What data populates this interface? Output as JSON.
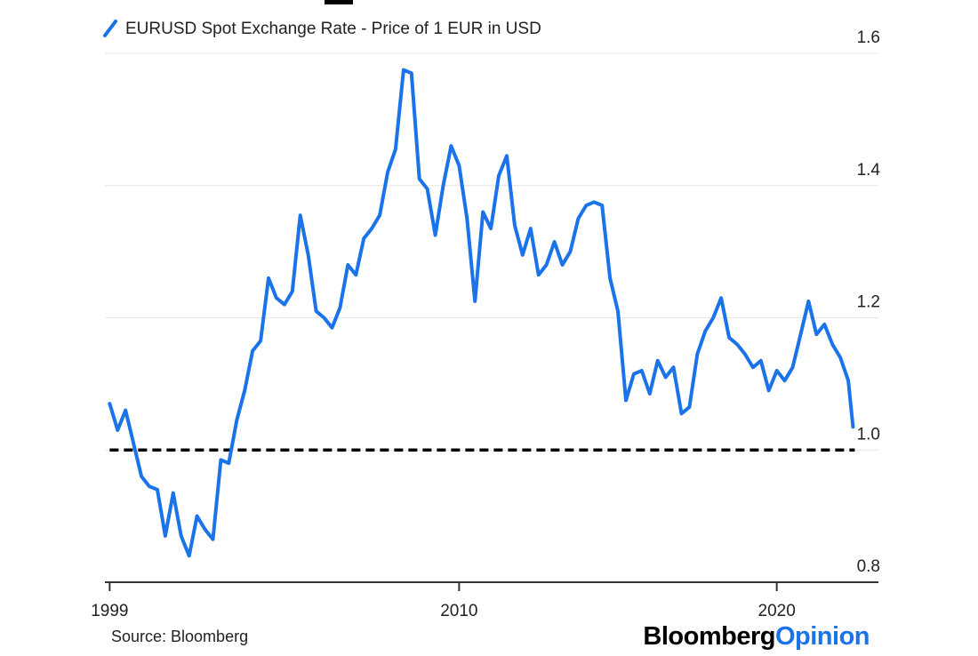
{
  "chart_data": {
    "type": "line",
    "series": [
      {
        "name": "EURUSD Spot Exchange Rate - Price of 1 EUR in USD",
        "color": "#1a73e8",
        "points": [
          [
            1999.0,
            1.07
          ],
          [
            1999.25,
            1.03
          ],
          [
            1999.5,
            1.06
          ],
          [
            1999.75,
            1.01
          ],
          [
            2000.0,
            0.96
          ],
          [
            2000.25,
            0.945
          ],
          [
            2000.5,
            0.94
          ],
          [
            2000.75,
            0.87
          ],
          [
            2001.0,
            0.935
          ],
          [
            2001.25,
            0.87
          ],
          [
            2001.5,
            0.84
          ],
          [
            2001.75,
            0.9
          ],
          [
            2002.0,
            0.88
          ],
          [
            2002.25,
            0.865
          ],
          [
            2002.5,
            0.985
          ],
          [
            2002.75,
            0.98
          ],
          [
            2003.0,
            1.045
          ],
          [
            2003.25,
            1.09
          ],
          [
            2003.5,
            1.15
          ],
          [
            2003.75,
            1.165
          ],
          [
            2004.0,
            1.26
          ],
          [
            2004.25,
            1.23
          ],
          [
            2004.5,
            1.22
          ],
          [
            2004.75,
            1.24
          ],
          [
            2005.0,
            1.355
          ],
          [
            2005.25,
            1.295
          ],
          [
            2005.5,
            1.21
          ],
          [
            2005.75,
            1.2
          ],
          [
            2006.0,
            1.185
          ],
          [
            2006.25,
            1.215
          ],
          [
            2006.5,
            1.28
          ],
          [
            2006.75,
            1.265
          ],
          [
            2007.0,
            1.32
          ],
          [
            2007.25,
            1.335
          ],
          [
            2007.5,
            1.355
          ],
          [
            2007.75,
            1.42
          ],
          [
            2008.0,
            1.455
          ],
          [
            2008.25,
            1.575
          ],
          [
            2008.5,
            1.57
          ],
          [
            2008.75,
            1.41
          ],
          [
            2009.0,
            1.395
          ],
          [
            2009.25,
            1.325
          ],
          [
            2009.5,
            1.4
          ],
          [
            2009.75,
            1.46
          ],
          [
            2010.0,
            1.43
          ],
          [
            2010.25,
            1.35
          ],
          [
            2010.5,
            1.225
          ],
          [
            2010.75,
            1.36
          ],
          [
            2011.0,
            1.335
          ],
          [
            2011.25,
            1.415
          ],
          [
            2011.5,
            1.445
          ],
          [
            2011.75,
            1.34
          ],
          [
            2012.0,
            1.295
          ],
          [
            2012.25,
            1.335
          ],
          [
            2012.5,
            1.265
          ],
          [
            2012.75,
            1.28
          ],
          [
            2013.0,
            1.315
          ],
          [
            2013.25,
            1.28
          ],
          [
            2013.5,
            1.3
          ],
          [
            2013.75,
            1.35
          ],
          [
            2014.0,
            1.37
          ],
          [
            2014.25,
            1.375
          ],
          [
            2014.5,
            1.37
          ],
          [
            2014.75,
            1.26
          ],
          [
            2015.0,
            1.21
          ],
          [
            2015.25,
            1.075
          ],
          [
            2015.5,
            1.115
          ],
          [
            2015.75,
            1.12
          ],
          [
            2016.0,
            1.085
          ],
          [
            2016.25,
            1.135
          ],
          [
            2016.5,
            1.11
          ],
          [
            2016.75,
            1.125
          ],
          [
            2017.0,
            1.055
          ],
          [
            2017.25,
            1.065
          ],
          [
            2017.5,
            1.145
          ],
          [
            2017.75,
            1.18
          ],
          [
            2018.0,
            1.2
          ],
          [
            2018.25,
            1.23
          ],
          [
            2018.5,
            1.17
          ],
          [
            2018.75,
            1.16
          ],
          [
            2019.0,
            1.145
          ],
          [
            2019.25,
            1.125
          ],
          [
            2019.5,
            1.135
          ],
          [
            2019.75,
            1.09
          ],
          [
            2020.0,
            1.12
          ],
          [
            2020.25,
            1.105
          ],
          [
            2020.5,
            1.125
          ],
          [
            2020.75,
            1.175
          ],
          [
            2021.0,
            1.225
          ],
          [
            2021.25,
            1.175
          ],
          [
            2021.5,
            1.19
          ],
          [
            2021.75,
            1.16
          ],
          [
            2022.0,
            1.14
          ],
          [
            2022.25,
            1.105
          ],
          [
            2022.4,
            1.035
          ]
        ]
      }
    ],
    "reference_line": {
      "y": 1.0,
      "style": "dashed",
      "color": "#000000"
    },
    "xlim": [
      1998.85,
      2023.2
    ],
    "ylim": [
      0.8,
      1.6
    ],
    "x_ticks": [
      1999,
      2010,
      2020
    ],
    "x_tick_labels": [
      "1999",
      "2010",
      "2020"
    ],
    "y_ticks": [
      0.8,
      1.0,
      1.2,
      1.4,
      1.6
    ],
    "y_tick_labels": [
      "0.8",
      "1.0",
      "1.2",
      "1.4",
      "1.6"
    ],
    "y_axis_side": "right",
    "grid": "horizontal",
    "legend": "top-left",
    "title": "",
    "xlabel": "",
    "ylabel": ""
  },
  "footer": {
    "source": "Source: Bloomberg",
    "brand_part1": "Bloomberg",
    "brand_part2": "Opinion",
    "brand_color": "#1a73e8"
  }
}
